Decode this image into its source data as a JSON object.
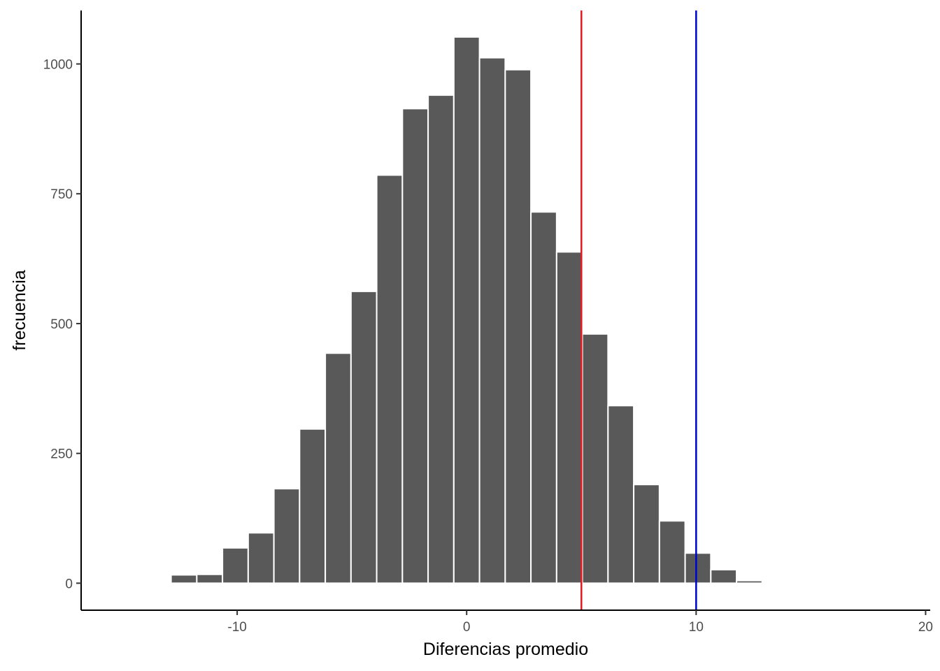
{
  "chart_data": {
    "type": "bar",
    "title": "",
    "xlabel": "Diferencias promedio",
    "ylabel": "frecuencia",
    "xlim": [
      -16.8,
      20.2
    ],
    "ylim": [
      -52,
      1103
    ],
    "x_ticks": [
      -10,
      0,
      10,
      20
    ],
    "y_ticks": [
      0,
      250,
      500,
      750,
      1000
    ],
    "x_tick_labels": [
      "-10",
      "0",
      "10",
      "20"
    ],
    "y_tick_labels": [
      "0",
      "250",
      "500",
      "750",
      "1000"
    ],
    "grid": false,
    "legend": "none",
    "bin_width": 1.12,
    "bins": [
      {
        "x": -13.44,
        "count": 2
      },
      {
        "x": -12.32,
        "count": 16
      },
      {
        "x": -11.2,
        "count": 17
      },
      {
        "x": -10.08,
        "count": 68
      },
      {
        "x": -8.96,
        "count": 97
      },
      {
        "x": -7.84,
        "count": 182
      },
      {
        "x": -6.72,
        "count": 297
      },
      {
        "x": -5.6,
        "count": 443
      },
      {
        "x": -4.48,
        "count": 562
      },
      {
        "x": -3.36,
        "count": 786
      },
      {
        "x": -2.24,
        "count": 914
      },
      {
        "x": -1.12,
        "count": 940
      },
      {
        "x": 0.0,
        "count": 1052
      },
      {
        "x": 1.12,
        "count": 1012
      },
      {
        "x": 2.24,
        "count": 989
      },
      {
        "x": 3.36,
        "count": 715
      },
      {
        "x": 4.48,
        "count": 638
      },
      {
        "x": 5.6,
        "count": 480
      },
      {
        "x": 6.72,
        "count": 342
      },
      {
        "x": 7.84,
        "count": 190
      },
      {
        "x": 8.96,
        "count": 120
      },
      {
        "x": 10.08,
        "count": 58
      },
      {
        "x": 11.2,
        "count": 26
      },
      {
        "x": 12.32,
        "count": 5
      },
      {
        "x": 13.44,
        "count": 2
      }
    ],
    "vlines": [
      {
        "x": 5,
        "color": "#e41a1c"
      },
      {
        "x": 10,
        "color": "#0000cd"
      }
    ],
    "bar_color": "#595959",
    "bar_outline": "#ffffff"
  }
}
